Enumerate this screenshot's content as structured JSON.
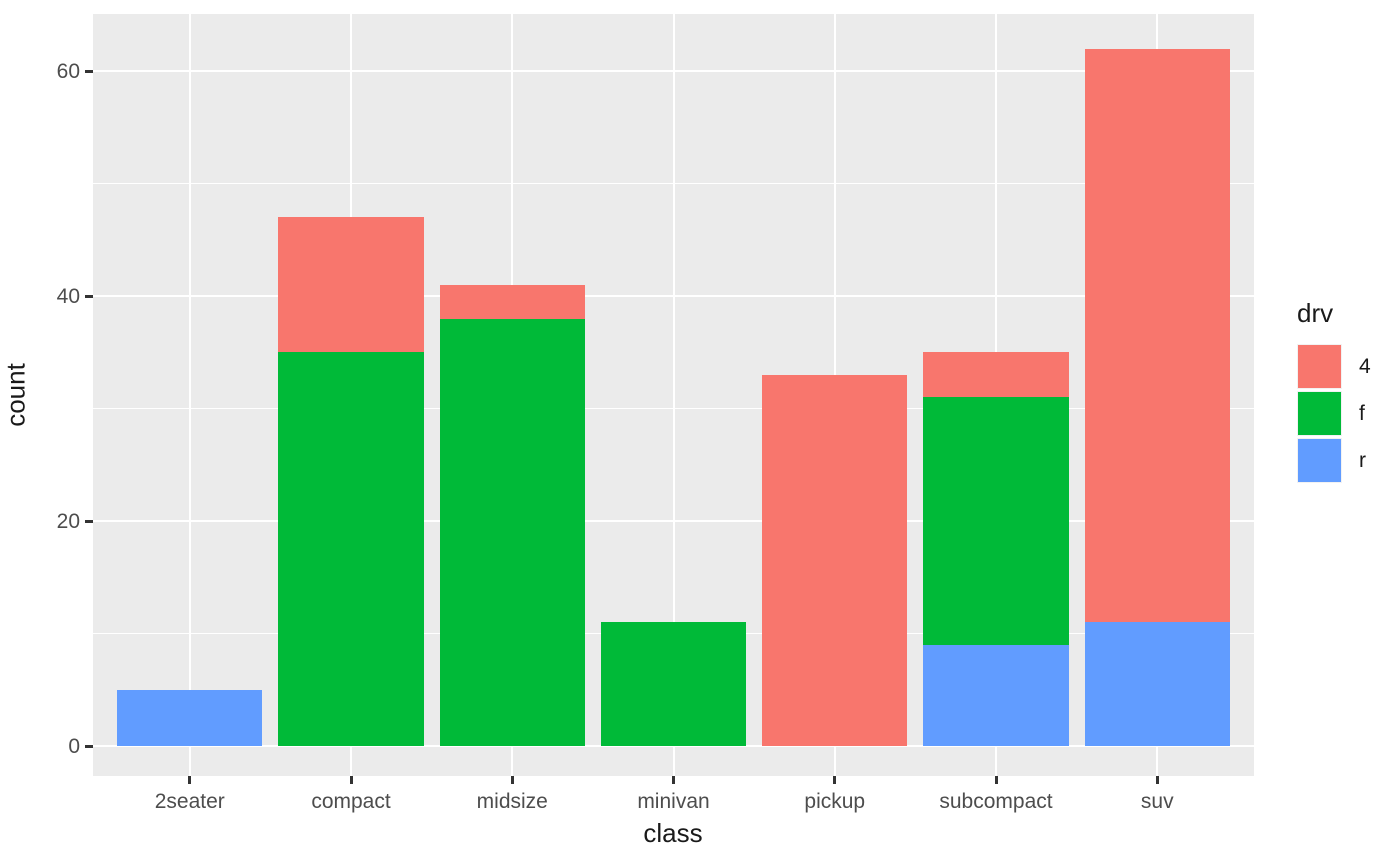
{
  "chart_data": {
    "type": "bar",
    "stacked": true,
    "title": "",
    "xlabel": "class",
    "ylabel": "count",
    "categories": [
      "2seater",
      "compact",
      "midsize",
      "minivan",
      "pickup",
      "subcompact",
      "suv"
    ],
    "series": [
      {
        "name": "4",
        "color": "#F8766D",
        "values": [
          0,
          12,
          3,
          0,
          33,
          4,
          51
        ]
      },
      {
        "name": "f",
        "color": "#00BA38",
        "values": [
          0,
          35,
          38,
          11,
          0,
          22,
          0
        ]
      },
      {
        "name": "r",
        "color": "#619CFF",
        "values": [
          5,
          0,
          0,
          0,
          0,
          9,
          11
        ]
      }
    ],
    "stack_order_bottom_to_top": [
      "r",
      "f",
      "4"
    ],
    "totals": [
      5,
      47,
      41,
      11,
      33,
      35,
      62
    ],
    "y_major_ticks": [
      0,
      20,
      40,
      60
    ],
    "y_minor_ticks": [
      10,
      30,
      50
    ],
    "ylim": [
      -3.1,
      65.1
    ],
    "grid": true,
    "legend_title": "drv",
    "legend_position": "right",
    "legend_entries": [
      {
        "label": "4",
        "color": "#F8766D"
      },
      {
        "label": "f",
        "color": "#00BA38"
      },
      {
        "label": "r",
        "color": "#619CFF"
      }
    ],
    "colors": {
      "panel_background": "#EBEBEB",
      "gridline": "#FFFFFF",
      "tick_mark": "#333333",
      "tick_label": "#4D4D4D",
      "axis_title": "#1A1A1A"
    }
  }
}
